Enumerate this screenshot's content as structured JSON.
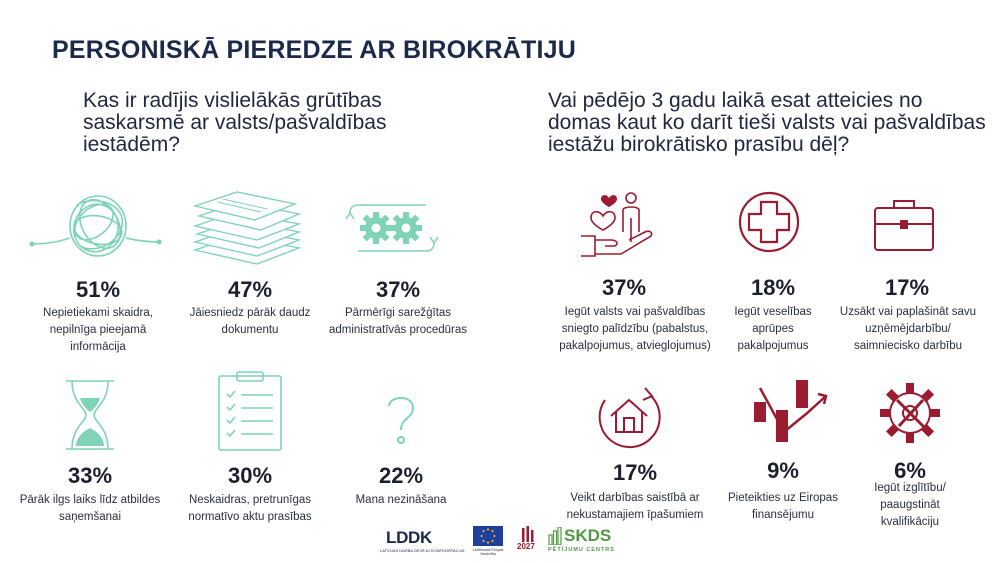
{
  "title": "PERSONISKĀ PIEREDZE AR BIROKRĀTIJU",
  "left": {
    "question": "Kas ir radījis vislielākās grūtības saskarsmē ar valsts/pašvaldības iestādēm?",
    "accent": "#7fd3b6",
    "items": [
      {
        "percent": "51%",
        "label": "Nepietiekami skaidra, nepilnīga pieejamā informācija",
        "icon": "tangled-line-icon"
      },
      {
        "percent": "47%",
        "label": "Jāiesniedz pārāk daudz dokumentu",
        "icon": "document-stack-icon"
      },
      {
        "percent": "37%",
        "label": "Pārmērīgi sarežģītas administratīvās procedūras",
        "icon": "gears-icon"
      },
      {
        "percent": "33%",
        "label": "Pārāk ilgs laiks līdz atbildes saņemšanai",
        "icon": "hourglass-icon"
      },
      {
        "percent": "30%",
        "label": "Neskaidras, pretrunīgas normatīvo aktu prasības",
        "icon": "checklist-icon"
      },
      {
        "percent": "22%",
        "label": "Mana nezināšana",
        "icon": "question-mark-icon"
      }
    ]
  },
  "right": {
    "question": "Vai pēdējo 3 gadu laikā esat atteicies no domas kaut ko darīt tieši valsts vai pašvaldības iestāžu birokrātisko prasību dēļ?",
    "accent": "#9b1b30",
    "items": [
      {
        "percent": "37%",
        "label": "Iegūt valsts vai pašvaldības sniegto palīdzību (pabalstus, pakalpojumus, atvieglojumus)",
        "icon": "care-hand-icon"
      },
      {
        "percent": "18%",
        "label": "Iegūt veselības aprūpes pakalpojumus",
        "icon": "medical-cross-icon"
      },
      {
        "percent": "17%",
        "label": "Uzsākt vai paplašināt savu uzņēmējdarbību/ saimniecisko darbību",
        "icon": "briefcase-icon"
      },
      {
        "percent": "17%",
        "label": "Veikt darbības saistībā ar nekustamajiem īpašumiem",
        "icon": "house-icon"
      },
      {
        "percent": "9%",
        "label": "Pieteikties uz Eiropas finansējumu",
        "icon": "growth-chart-icon"
      },
      {
        "percent": "6%",
        "label": "Iegūt izglītību/ paaugstināt kvalifikāciju",
        "icon": "gear-tools-icon"
      }
    ]
  },
  "logos": {
    "lddk": "LDDK",
    "lddk_sub": "LATVIJAS DARBA DEVĒJU KONFEDERĀCIJA",
    "eu": "Līdzfinansē Eiropas Savienība",
    "year": "2027",
    "skds": "SKDS",
    "skds_sub": "PĒTĪJUMU CENTRS"
  }
}
